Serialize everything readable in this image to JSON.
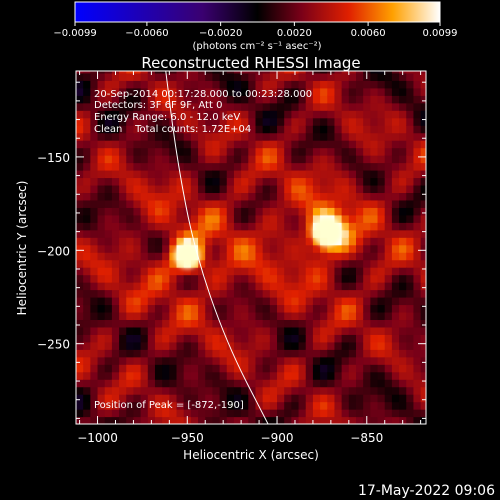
{
  "chart_data": {
    "type": "heatmap",
    "title": "Reconstructed RHESSI Image",
    "xlabel": "Heliocentric X (arcsec)",
    "ylabel": "Heliocentric Y (arcsec)",
    "xlim": [
      -1012,
      -817
    ],
    "ylim": [
      -293,
      -104
    ],
    "xticks": [
      -1000,
      -950,
      -900,
      -850
    ],
    "yticks": [
      -150,
      -200,
      -250
    ],
    "xtick_labels": [
      "−1000",
      "−950",
      "−900",
      "−850"
    ],
    "ytick_labels": [
      "−150",
      "−200",
      "−250"
    ],
    "colorbar": {
      "min": -0.0099,
      "max": 0.0099,
      "ticks": [
        -0.0099,
        -0.006,
        -0.002,
        0.002,
        0.006,
        0.0099
      ],
      "tick_labels": [
        "−0.0099",
        "−0.0060",
        "−0.0020",
        "0.0020",
        "0.0060",
        "0.0099"
      ],
      "unit_label": "(photons cm⁻² s⁻¹ asec⁻²)"
    },
    "sources": [
      {
        "x": -872,
        "y": -190,
        "peak": 0.0099,
        "sigma": 7
      },
      {
        "x": -950,
        "y": -203,
        "peak": 0.0085,
        "sigma": 6
      }
    ],
    "limb_curve": [
      [
        -962,
        -104
      ],
      [
        -956,
        -150
      ],
      [
        -946,
        -200
      ],
      [
        -928,
        -250
      ],
      [
        -905,
        -293
      ]
    ],
    "annotations": [
      "20-Sep-2014 00:17:28.000 to 00:23:28.000",
      "Detectors: 3F 6F 9F, Att 0",
      "Energy Range: 6.0 - 12.0 keV",
      "Clean    Total counts: 1.72E+04"
    ],
    "peak_label": "Position of Peak = [-872,-190]",
    "grid": false,
    "legend": "none"
  },
  "footer": {
    "timestamp": "17-May-2022 09:06"
  }
}
